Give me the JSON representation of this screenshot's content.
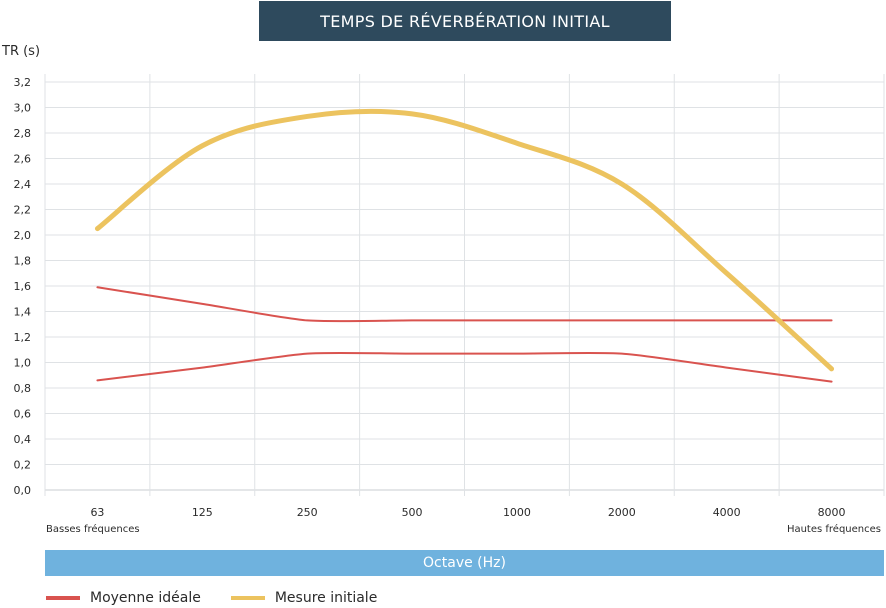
{
  "chart_data": {
    "type": "line",
    "title": "TEMPS DE RÉVERBÉRATION INITIAL",
    "ylabel": "TR (s)",
    "xlabel": "Octave (Hz)",
    "ylim": [
      0,
      3.2
    ],
    "yticks": [
      "0,0",
      "0,2",
      "0,4",
      "0,6",
      "0,8",
      "1,0",
      "1,2",
      "1,4",
      "1,6",
      "1,8",
      "2,0",
      "2,2",
      "2,4",
      "2,6",
      "2,8",
      "3,0",
      "3,2"
    ],
    "categories": [
      "63",
      "125",
      "250",
      "500",
      "1000",
      "2000",
      "4000",
      "8000"
    ],
    "annotations": {
      "left": "Basses fréquences",
      "right": "Hautes fréquences"
    },
    "grid": true,
    "series": [
      {
        "name": "Moyenne idéale",
        "role": "upper",
        "color": "#d9534f",
        "values": [
          1.59,
          1.46,
          1.33,
          1.33,
          1.33,
          1.33,
          1.33,
          1.33
        ]
      },
      {
        "name": "",
        "role": "lower",
        "color": "#d9534f",
        "values": [
          0.86,
          0.96,
          1.07,
          1.07,
          1.07,
          1.07,
          0.96,
          0.85
        ]
      },
      {
        "name": "Mesure initiale",
        "role": "measure",
        "color": "#ecc35f",
        "values": [
          2.05,
          2.7,
          2.93,
          2.95,
          2.72,
          2.4,
          1.7,
          0.95
        ]
      }
    ]
  },
  "legend": [
    {
      "label": "Moyenne idéale",
      "color": "#d9534f"
    },
    {
      "label": "Mesure initiale",
      "color": "#ecc35f"
    }
  ]
}
